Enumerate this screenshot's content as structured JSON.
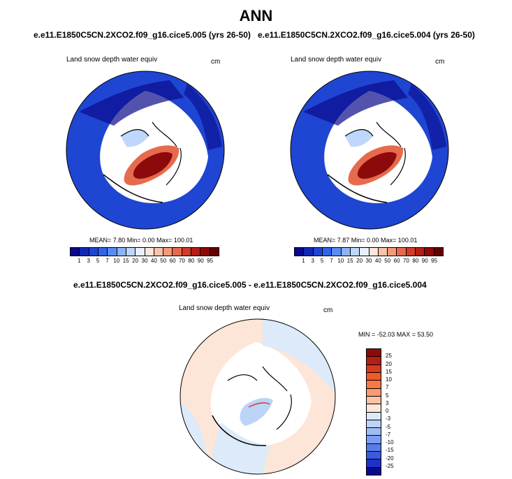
{
  "title": "ANN",
  "panels": [
    {
      "subtitle": "e.e11.E1850C5CN.2XCO2.f09_g16.cice5.005 (yrs 26-50)",
      "variable": "Land snow depth water equiv",
      "units": "cm",
      "stats": "MEAN=   7.80  Min=   0.00  Max= 100.01"
    },
    {
      "subtitle": "e.e11.E1850C5CN.2XCO2.f09_g16.cice5.004 (yrs 26-50)",
      "variable": "Land snow depth water equiv",
      "units": "cm",
      "stats": "MEAN=   7.87  Min=   0.00  Max= 100.01"
    }
  ],
  "diff": {
    "subtitle": "e.e11.E1850C5CN.2XCO2.f09_g16.cice5.005 - e.e11.E1850C5CN.2XCO2.f09_g16.cice5.004",
    "variable": "Land snow depth water equiv",
    "units": "cm",
    "stats": "MIN = -52.03 MAX =  53.50"
  },
  "colorbar_top": {
    "labels": [
      "1",
      "3",
      "5",
      "7",
      "10",
      "15",
      "20",
      "30",
      "40",
      "50",
      "60",
      "70",
      "80",
      "90",
      "95"
    ],
    "colors": [
      "#0a0a8c",
      "#1428b4",
      "#1e46d2",
      "#3264e6",
      "#5a8cf0",
      "#8cb4f5",
      "#bed7fa",
      "#e8f0fc",
      "#fde6da",
      "#f8c3aa",
      "#f29a7a",
      "#e66a4e",
      "#d23c28",
      "#b41e14",
      "#8c0a0a",
      "#640000"
    ]
  },
  "colorbar_diff": {
    "labels": [
      "25",
      "20",
      "15",
      "10",
      "7",
      "5",
      "3",
      "0",
      "-3",
      "-5",
      "-7",
      "-10",
      "-15",
      "-20",
      "-25"
    ],
    "colors": [
      "#8c0a0a",
      "#b41e14",
      "#d83a1e",
      "#f05a28",
      "#f87846",
      "#fa9a72",
      "#fcc2a6",
      "#fde6d8",
      "#dceafa",
      "#bcd4f8",
      "#9cbcf4",
      "#7c9ef0",
      "#5a7ce8",
      "#3a5ae0",
      "#1e32c8",
      "#0a0a8c"
    ]
  }
}
